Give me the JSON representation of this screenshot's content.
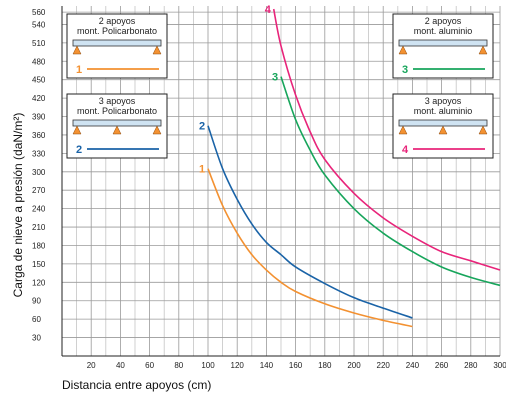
{
  "chart_data": {
    "type": "line",
    "title": "",
    "xlabel": "Distancia entre apoyos (cm)",
    "ylabel": "Carga de nieve a presión  (daN/m²)",
    "xlim": [
      0,
      300
    ],
    "ylim": [
      0,
      570
    ],
    "grid": true,
    "x_ticks": [
      "20",
      "40",
      "60",
      "80",
      "100",
      "120",
      "140",
      "160",
      "180",
      "200",
      "220",
      "240",
      "260",
      "280",
      "300"
    ],
    "y_ticks": [
      "30",
      "60",
      "90",
      "120",
      "150",
      "180",
      "210",
      "240",
      "270",
      "300",
      "330",
      "360",
      "390",
      "420",
      "450",
      "480",
      "510",
      "540",
      "560"
    ],
    "series": [
      {
        "name": "1",
        "color": "#f39131",
        "x": [
          100,
          110,
          120,
          130,
          140,
          150,
          160,
          180,
          200,
          220,
          240
        ],
        "y": [
          305,
          245,
          200,
          165,
          140,
          120,
          105,
          85,
          70,
          58,
          48
        ]
      },
      {
        "name": "2",
        "color": "#1a63a7",
        "x": [
          100,
          110,
          120,
          130,
          140,
          150,
          160,
          180,
          200,
          220,
          240
        ],
        "y": [
          375,
          305,
          255,
          215,
          185,
          165,
          145,
          118,
          95,
          78,
          62
        ]
      },
      {
        "name": "3",
        "color": "#17a55b",
        "x": [
          150,
          160,
          170,
          180,
          200,
          220,
          240,
          260,
          280,
          300
        ],
        "y": [
          455,
          385,
          335,
          295,
          240,
          200,
          170,
          145,
          128,
          115
        ]
      },
      {
        "name": "4",
        "color": "#e8247a",
        "x": [
          145,
          150,
          160,
          170,
          180,
          200,
          220,
          240,
          260,
          280,
          300
        ],
        "y": [
          565,
          505,
          425,
          365,
          320,
          265,
          225,
          195,
          170,
          155,
          140
        ]
      }
    ],
    "legend_boxes": [
      {
        "line1": "2 apoyos",
        "line2": "mont. Policarbonato",
        "num": "1",
        "supports": 2,
        "color": "#f39131"
      },
      {
        "line1": "3 apoyos",
        "line2": "mont. Policarbonato",
        "num": "2",
        "supports": 3,
        "color": "#1a63a7"
      },
      {
        "line1": "2 apoyos",
        "line2": "mont. aluminio",
        "num": "3",
        "supports": 2,
        "color": "#17a55b"
      },
      {
        "line1": "3 apoyos",
        "line2": "mont. aluminio",
        "num": "4",
        "supports": 3,
        "color": "#e8247a"
      }
    ]
  }
}
